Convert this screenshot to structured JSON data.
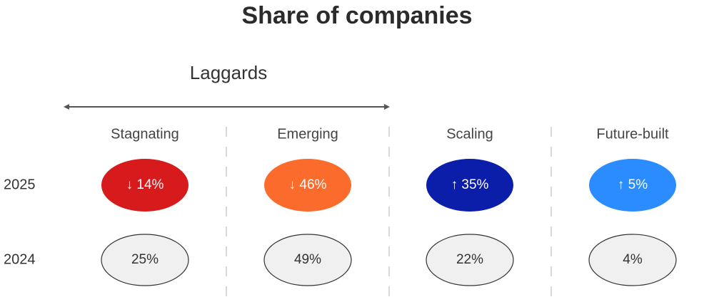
{
  "title": "Share of companies",
  "group": {
    "label": "Laggards"
  },
  "columns": [
    "Stagnating",
    "Emerging",
    "Scaling",
    "Future-built"
  ],
  "rows": [
    {
      "label": "2025",
      "cells": [
        "↓ 14%",
        "↓ 46%",
        "↑ 35%",
        "↑ 5%"
      ]
    },
    {
      "label": "2024",
      "cells": [
        "25%",
        "49%",
        "22%",
        "4%"
      ]
    }
  ]
}
